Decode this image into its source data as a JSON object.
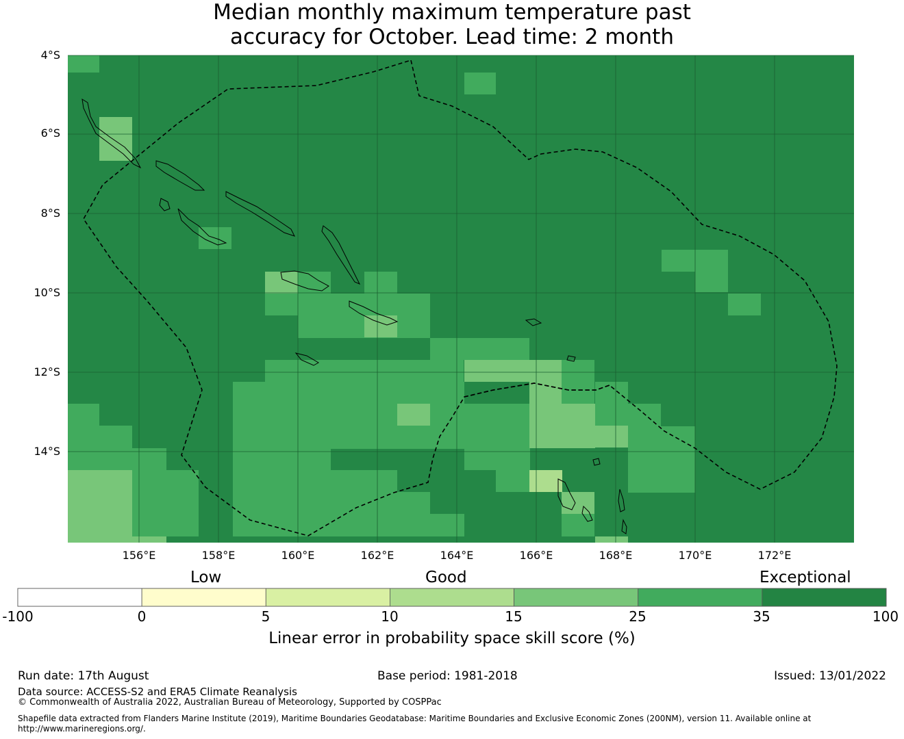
{
  "title_line1": "Median monthly maximum temperature past",
  "title_line2": "accuracy for October. Lead time: 2 month",
  "map": {
    "lat_labels": [
      "4°S",
      "6°S",
      "8°S",
      "10°S",
      "12°S",
      "14°S"
    ],
    "lon_labels": [
      "156°E",
      "158°E",
      "160°E",
      "162°E",
      "164°E",
      "166°E",
      "168°E",
      "170°E",
      "172°E"
    ],
    "base_color": "#248746"
  },
  "colorbar": {
    "category_low": "Low",
    "category_good": "Good",
    "category_exceptional": "Exceptional",
    "ticks": [
      "-100",
      "0",
      "5",
      "10",
      "15",
      "25",
      "35",
      "100"
    ],
    "colors": [
      "#ffffff",
      "#fffdcc",
      "#d9f0a3",
      "#addd8e",
      "#78c679",
      "#41ab5d",
      "#238443"
    ],
    "axis_label": "Linear error in probability space skill score (%)"
  },
  "footer": {
    "run_date": "Run date: 17th August",
    "base_period": "Base period: 1981-2018",
    "issued": "Issued: 13/01/2022",
    "data_source": "Data source: ACCESS-S2 and ERA5 Climate Reanalysis",
    "copyright": "© Commonwealth of Australia 2022, Australian Bureau of Meteorology, Supported by COSPPac",
    "shapefile_line1": "Shapefile data extracted from Flanders Marine Institute (2019), Maritime Boundaries Geodatabase: Maritime Boundaries and Exclusive Economic Zones (200NM), version 11. Available online at",
    "shapefile_line2": "http://www.marineregions.org/."
  }
}
